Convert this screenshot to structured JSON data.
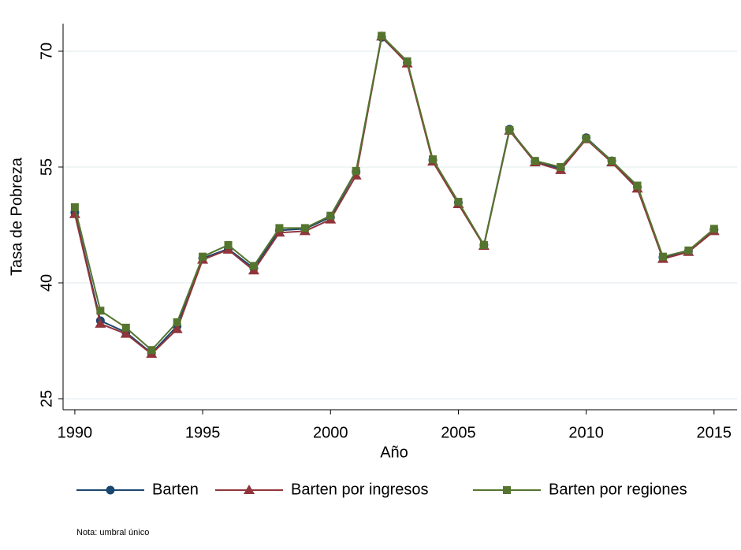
{
  "chart_data": {
    "type": "line",
    "x_label": "Año",
    "y_label": "Tasa de Pobreza",
    "note": "Nota: umbral único",
    "x": [
      1990,
      1991,
      1992,
      1993,
      1994,
      1995,
      1996,
      1997,
      1998,
      1999,
      2000,
      2001,
      2002,
      2003,
      2004,
      2005,
      2006,
      2007,
      2008,
      2009,
      2010,
      2011,
      2012,
      2013,
      2014,
      2015
    ],
    "series": [
      {
        "name": "Barten",
        "color": "#1a476f",
        "marker": "circle",
        "values": [
          49.1,
          35.1,
          33.6,
          30.9,
          34.4,
          43.2,
          44.4,
          41.9,
          46.8,
          47.0,
          48.5,
          54.4,
          71.8,
          68.5,
          55.9,
          50.4,
          44.9,
          59.9,
          55.7,
          54.8,
          58.8,
          55.8,
          52.4,
          43.3,
          44.1,
          46.9
        ]
      },
      {
        "name": "Barten por ingresos",
        "color": "#90353b",
        "marker": "triangle",
        "values": [
          48.9,
          34.7,
          33.4,
          30.8,
          34.0,
          43.0,
          44.3,
          41.6,
          46.5,
          46.7,
          48.2,
          53.9,
          71.9,
          68.4,
          55.7,
          50.2,
          44.8,
          59.7,
          55.6,
          54.6,
          58.6,
          55.6,
          52.2,
          43.1,
          44.0,
          46.7
        ]
      },
      {
        "name": "Barten por regiones",
        "color": "#55752f",
        "marker": "square",
        "values": [
          49.8,
          36.4,
          34.2,
          31.3,
          34.9,
          43.4,
          44.9,
          42.2,
          47.1,
          47.1,
          48.7,
          54.5,
          72.0,
          68.7,
          56.0,
          50.5,
          44.9,
          59.8,
          55.8,
          55.0,
          58.7,
          55.8,
          52.6,
          43.4,
          44.2,
          47.0
        ]
      }
    ],
    "xlim": [
      1989.54,
      2015.9
    ],
    "xticks": [
      1990,
      1995,
      2000,
      2005,
      2010,
      2015
    ],
    "ylim": [
      23.57,
      73.57
    ],
    "yticks": [
      25,
      40,
      55,
      70
    ],
    "grid": true
  }
}
